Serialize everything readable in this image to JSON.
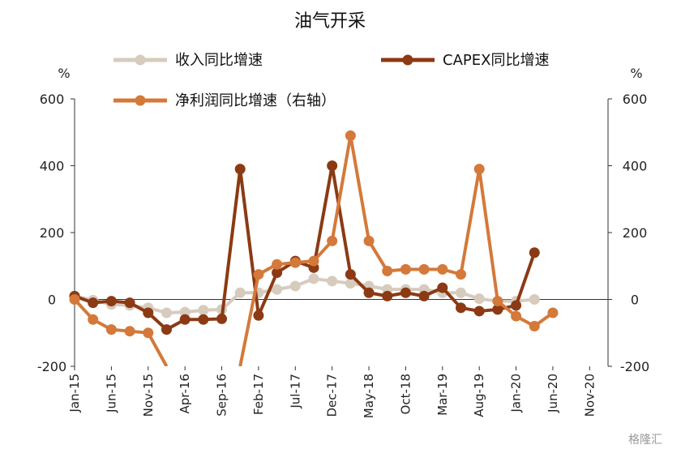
{
  "chart_data": {
    "type": "line",
    "title": "油气开采",
    "ylabel_left": "%",
    "ylabel_right": "%",
    "ylim_left": [
      -200,
      600
    ],
    "ylim_right": [
      -200,
      600
    ],
    "yticks": [
      -200,
      0,
      200,
      400,
      600
    ],
    "grid": false,
    "legend": "top",
    "x": [
      "Jan-15",
      "Mar-15",
      "Jun-15",
      "Aug-15",
      "Nov-15",
      "Jan-16",
      "Apr-16",
      "Jun-16",
      "Sep-16",
      "Nov-16",
      "Feb-17",
      "Apr-17",
      "Jul-17",
      "Sep-17",
      "Dec-17",
      "Feb-18",
      "May-18",
      "Jul-18",
      "Oct-18",
      "Dec-18",
      "Mar-19",
      "May-19",
      "Aug-19",
      "Oct-19",
      "Jan-20",
      "Mar-20",
      "Jun-20",
      "Aug-20",
      "Nov-20",
      "Jan-21"
    ],
    "xtick_labels": [
      "Jan-15",
      "Jun-15",
      "Nov-15",
      "Apr-16",
      "Sep-16",
      "Feb-17",
      "Jul-17",
      "Dec-17",
      "May-18",
      "Oct-18",
      "Mar-19",
      "Aug-19",
      "Jan-20",
      "Jun-20",
      "Nov-20"
    ],
    "series": [
      {
        "name": "收入同比增速",
        "axis": "left",
        "color": "#d6cbbd",
        "values": [
          10,
          -2,
          -15,
          -18,
          -25,
          -40,
          -38,
          -32,
          -30,
          20,
          20,
          30,
          40,
          62,
          55,
          48,
          40,
          30,
          30,
          30,
          20,
          20,
          2,
          -5,
          -5,
          0,
          null,
          null,
          null,
          null
        ]
      },
      {
        "name": "CAPEX同比增速",
        "axis": "left",
        "color": "#8b3a14",
        "values": [
          10,
          -10,
          -5,
          -10,
          -40,
          -90,
          -60,
          -60,
          -58,
          390,
          -48,
          80,
          115,
          95,
          400,
          75,
          20,
          10,
          20,
          10,
          35,
          -25,
          -35,
          -30,
          -18,
          140,
          null,
          null,
          null,
          null
        ]
      },
      {
        "name": "净利润同比增速（右轴）",
        "axis": "right",
        "color": "#d4793a",
        "values": [
          0,
          -60,
          -90,
          -95,
          -100,
          -200,
          null,
          null,
          null,
          -200,
          75,
          105,
          110,
          115,
          175,
          490,
          175,
          85,
          90,
          90,
          90,
          75,
          390,
          -5,
          -50,
          -80,
          -40,
          null,
          null,
          null
        ]
      }
    ]
  },
  "watermark": "格隆汇"
}
